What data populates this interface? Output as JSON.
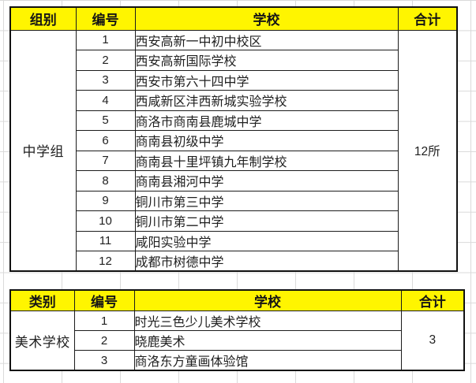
{
  "colors": {
    "header_bg": "#FFF500",
    "border": "#1c1c1c",
    "text": "#1f1f1f",
    "grid": "#dadada"
  },
  "tables": [
    {
      "name": "middle-school-group",
      "headers": [
        "组别",
        "编号",
        "学校",
        "合计"
      ],
      "group_label": "中学组",
      "total": "12所",
      "rows": [
        {
          "no": "1",
          "school": "西安高新一中初中校区"
        },
        {
          "no": "2",
          "school": "西安高新国际学校"
        },
        {
          "no": "3",
          "school": "西安市第六十四中学"
        },
        {
          "no": "4",
          "school": "西咸新区沣西新城实验学校"
        },
        {
          "no": "5",
          "school": "商洛市商南县鹿城中学"
        },
        {
          "no": "6",
          "school": "商南县初级中学"
        },
        {
          "no": "7",
          "school": "商南县十里坪镇九年制学校"
        },
        {
          "no": "8",
          "school": "商南县湘河中学"
        },
        {
          "no": "9",
          "school": "铜川市第三中学"
        },
        {
          "no": "10",
          "school": "铜川市第二中学"
        },
        {
          "no": "11",
          "school": "咸阳实验中学"
        },
        {
          "no": "12",
          "school": "成都市树德中学"
        }
      ]
    },
    {
      "name": "art-school",
      "headers": [
        "类别",
        "编号",
        "学校",
        "合计"
      ],
      "group_label": "美术学校",
      "total": "3",
      "rows": [
        {
          "no": "1",
          "school": "时光三色少儿美术学校"
        },
        {
          "no": "2",
          "school": "晓鹿美术"
        },
        {
          "no": "3",
          "school": "商洛东方童画体验馆"
        }
      ]
    }
  ]
}
